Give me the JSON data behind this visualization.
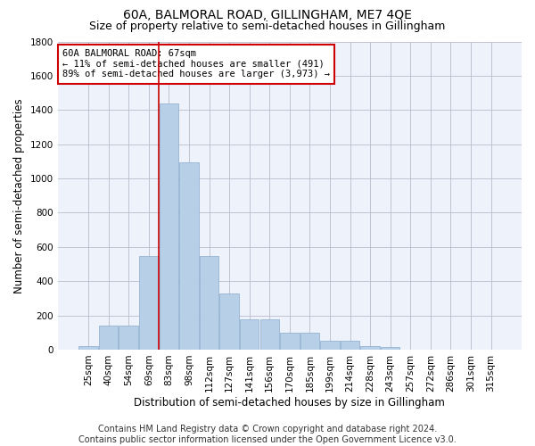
{
  "title": "60A, BALMORAL ROAD, GILLINGHAM, ME7 4QE",
  "subtitle": "Size of property relative to semi-detached houses in Gillingham",
  "xlabel": "Distribution of semi-detached houses by size in Gillingham",
  "ylabel": "Number of semi-detached properties",
  "footer_line1": "Contains HM Land Registry data © Crown copyright and database right 2024.",
  "footer_line2": "Contains public sector information licensed under the Open Government Licence v3.0.",
  "categories": [
    "25sqm",
    "40sqm",
    "54sqm",
    "69sqm",
    "83sqm",
    "98sqm",
    "112sqm",
    "127sqm",
    "141sqm",
    "156sqm",
    "170sqm",
    "185sqm",
    "199sqm",
    "214sqm",
    "228sqm",
    "243sqm",
    "257sqm",
    "272sqm",
    "286sqm",
    "301sqm",
    "315sqm"
  ],
  "values": [
    20,
    140,
    140,
    545,
    1440,
    1095,
    545,
    330,
    175,
    175,
    100,
    100,
    50,
    50,
    20,
    15,
    0,
    0,
    0,
    0,
    0
  ],
  "bar_color": "#b8cfe8",
  "bar_edgecolor": "#88aacc",
  "annotation_box_color": "#cc0000",
  "property_label": "60A BALMORAL ROAD: 67sqm",
  "pct_smaller": 11,
  "pct_larger": 89,
  "count_smaller": 491,
  "count_larger": 3973,
  "vline_index": 3.5,
  "ylim": [
    0,
    1800
  ],
  "yticks": [
    0,
    200,
    400,
    600,
    800,
    1000,
    1200,
    1400,
    1600,
    1800
  ],
  "background_color": "#eef2fb",
  "grid_color": "#bbbbcc",
  "title_fontsize": 10,
  "subtitle_fontsize": 9,
  "axis_label_fontsize": 8.5,
  "tick_fontsize": 7.5,
  "annotation_fontsize": 7.5,
  "footer_fontsize": 7
}
